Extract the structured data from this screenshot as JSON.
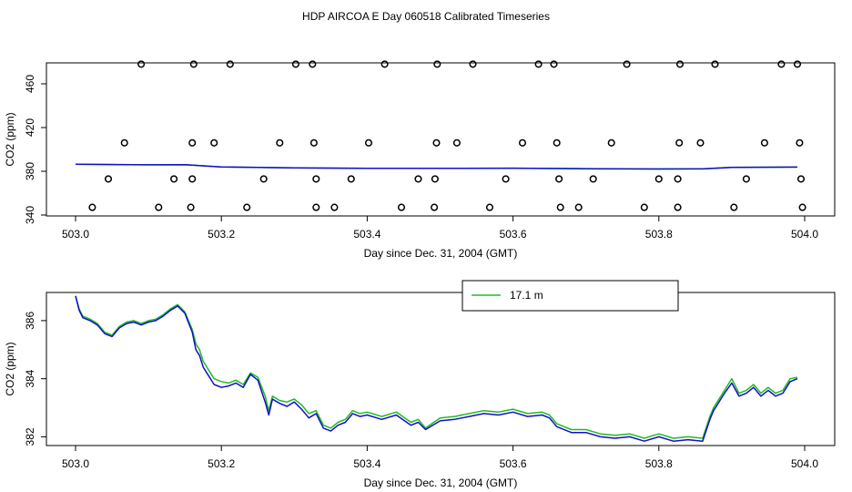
{
  "title": "HDP AIRCOA E  Day 060518  Calibrated Timeseries",
  "chart_data": [
    {
      "type": "scatter",
      "xlabel": "Day since Dec. 31, 2004 (GMT)",
      "ylabel": "CO2 (ppm)",
      "xlim": [
        503.0,
        504.0
      ],
      "ylim": [
        340,
        480
      ],
      "xticks": [
        503.0,
        503.2,
        503.4,
        503.6,
        503.8,
        504.0
      ],
      "xtick_labels": [
        "503.0",
        "503.2",
        "503.4",
        "503.6",
        "503.8",
        "504.0"
      ],
      "yticks": [
        340,
        380,
        420,
        460
      ],
      "ytick_labels": [
        "340",
        "380",
        "420",
        "460"
      ],
      "points": [
        [
          503.09,
          478
        ],
        [
          503.162,
          478
        ],
        [
          503.212,
          478
        ],
        [
          503.302,
          478
        ],
        [
          503.325,
          478
        ],
        [
          503.424,
          478
        ],
        [
          503.496,
          478
        ],
        [
          503.545,
          478
        ],
        [
          503.635,
          478
        ],
        [
          503.656,
          478
        ],
        [
          503.756,
          478
        ],
        [
          503.829,
          478
        ],
        [
          503.877,
          478
        ],
        [
          503.968,
          478
        ],
        [
          503.99,
          478
        ],
        [
          503.067,
          406
        ],
        [
          503.16,
          406
        ],
        [
          503.19,
          406
        ],
        [
          503.28,
          406
        ],
        [
          503.327,
          406
        ],
        [
          503.402,
          406
        ],
        [
          503.495,
          406
        ],
        [
          503.523,
          406
        ],
        [
          503.613,
          406
        ],
        [
          503.66,
          406
        ],
        [
          503.735,
          406
        ],
        [
          503.828,
          406
        ],
        [
          503.857,
          406
        ],
        [
          503.945,
          406
        ],
        [
          503.993,
          406
        ],
        [
          503.045,
          373
        ],
        [
          503.135,
          373
        ],
        [
          503.16,
          373
        ],
        [
          503.258,
          373
        ],
        [
          503.33,
          373
        ],
        [
          503.378,
          373
        ],
        [
          503.47,
          373
        ],
        [
          503.493,
          373
        ],
        [
          503.59,
          373
        ],
        [
          503.663,
          373
        ],
        [
          503.71,
          373
        ],
        [
          503.8,
          373
        ],
        [
          503.826,
          373
        ],
        [
          503.92,
          373
        ],
        [
          503.995,
          373
        ],
        [
          503.023,
          347
        ],
        [
          503.114,
          347
        ],
        [
          503.158,
          347
        ],
        [
          503.235,
          347
        ],
        [
          503.33,
          347
        ],
        [
          503.355,
          347
        ],
        [
          503.447,
          347
        ],
        [
          503.492,
          347
        ],
        [
          503.568,
          347
        ],
        [
          503.665,
          347
        ],
        [
          503.69,
          347
        ],
        [
          503.78,
          347
        ],
        [
          503.826,
          347
        ],
        [
          503.903,
          347
        ],
        [
          503.997,
          347
        ]
      ],
      "series": [
        {
          "color": "#22bb22",
          "values": [
            [
              503.0,
              386.4
            ],
            [
              503.1,
              385.9
            ],
            [
              503.15,
              386.0
            ],
            [
              503.2,
              384.0
            ],
            [
              503.3,
              383.2
            ],
            [
              503.4,
              382.7
            ],
            [
              503.5,
              382.7
            ],
            [
              503.6,
              382.8
            ],
            [
              503.7,
              382.4
            ],
            [
              503.8,
              382.2
            ],
            [
              503.86,
              382.3
            ],
            [
              503.9,
              383.7
            ],
            [
              503.99,
              383.8
            ]
          ]
        },
        {
          "color": "#1010cc",
          "values": [
            [
              503.0,
              386.4
            ],
            [
              503.1,
              385.9
            ],
            [
              503.15,
              386.0
            ],
            [
              503.2,
              384.0
            ],
            [
              503.3,
              383.2
            ],
            [
              503.4,
              382.7
            ],
            [
              503.5,
              382.7
            ],
            [
              503.6,
              382.8
            ],
            [
              503.7,
              382.3
            ],
            [
              503.8,
              382.1
            ],
            [
              503.86,
              382.2
            ],
            [
              503.9,
              383.6
            ],
            [
              503.99,
              383.8
            ]
          ]
        }
      ]
    },
    {
      "type": "line",
      "xlabel": "Day since Dec. 31, 2004 (GMT)",
      "ylabel": "CO2 (ppm)",
      "xlim": [
        503.0,
        504.0
      ],
      "ylim": [
        381.7,
        387.0
      ],
      "xticks": [
        503.0,
        503.2,
        503.4,
        503.6,
        503.8,
        504.0
      ],
      "xtick_labels": [
        "503.0",
        "503.2",
        "503.4",
        "503.6",
        "503.8",
        "504.0"
      ],
      "yticks": [
        382,
        384,
        386
      ],
      "ytick_labels": [
        "382",
        "384",
        "386"
      ],
      "legend": {
        "position": "top-center",
        "entries": [
          "17.1 m"
        ]
      },
      "series": [
        {
          "name": "17.1 m",
          "color": "#22bb22",
          "values": [
            [
              503.0,
              386.85
            ],
            [
              503.005,
              386.4
            ],
            [
              503.01,
              386.15
            ],
            [
              503.02,
              386.05
            ],
            [
              503.03,
              385.9
            ],
            [
              503.04,
              385.6
            ],
            [
              503.05,
              385.5
            ],
            [
              503.06,
              385.8
            ],
            [
              503.07,
              385.95
            ],
            [
              503.08,
              386.0
            ],
            [
              503.09,
              385.9
            ],
            [
              503.1,
              386.0
            ],
            [
              503.11,
              386.05
            ],
            [
              503.12,
              386.2
            ],
            [
              503.13,
              386.4
            ],
            [
              503.14,
              386.55
            ],
            [
              503.15,
              386.3
            ],
            [
              503.16,
              385.7
            ],
            [
              503.165,
              385.2
            ],
            [
              503.17,
              385.0
            ],
            [
              503.175,
              384.6
            ],
            [
              503.18,
              384.4
            ],
            [
              503.19,
              384.0
            ],
            [
              503.2,
              383.9
            ],
            [
              503.21,
              383.85
            ],
            [
              503.22,
              383.95
            ],
            [
              503.23,
              383.8
            ],
            [
              503.24,
              384.2
            ],
            [
              503.25,
              384.05
            ],
            [
              503.26,
              383.4
            ],
            [
              503.265,
              382.9
            ],
            [
              503.27,
              383.4
            ],
            [
              503.28,
              383.25
            ],
            [
              503.29,
              383.2
            ],
            [
              503.3,
              383.3
            ],
            [
              503.31,
              383.1
            ],
            [
              503.32,
              382.8
            ],
            [
              503.33,
              382.9
            ],
            [
              503.34,
              382.4
            ],
            [
              503.35,
              382.3
            ],
            [
              503.36,
              382.5
            ],
            [
              503.37,
              382.6
            ],
            [
              503.38,
              382.9
            ],
            [
              503.39,
              382.8
            ],
            [
              503.4,
              382.85
            ],
            [
              503.42,
              382.7
            ],
            [
              503.44,
              382.85
            ],
            [
              503.46,
              382.5
            ],
            [
              503.47,
              382.6
            ],
            [
              503.48,
              382.3
            ],
            [
              503.5,
              382.65
            ],
            [
              503.52,
              382.7
            ],
            [
              503.54,
              382.8
            ],
            [
              503.56,
              382.9
            ],
            [
              503.58,
              382.85
            ],
            [
              503.6,
              382.95
            ],
            [
              503.62,
              382.8
            ],
            [
              503.64,
              382.85
            ],
            [
              503.65,
              382.75
            ],
            [
              503.66,
              382.45
            ],
            [
              503.68,
              382.25
            ],
            [
              503.7,
              382.25
            ],
            [
              503.72,
              382.1
            ],
            [
              503.74,
              382.05
            ],
            [
              503.76,
              382.1
            ],
            [
              503.78,
              381.95
            ],
            [
              503.8,
              382.1
            ],
            [
              503.82,
              381.95
            ],
            [
              503.84,
              382.0
            ],
            [
              503.86,
              381.95
            ],
            [
              503.87,
              382.7
            ],
            [
              503.875,
              383.0
            ],
            [
              503.88,
              383.2
            ],
            [
              503.89,
              383.6
            ],
            [
              503.9,
              384.0
            ],
            [
              503.91,
              383.5
            ],
            [
              503.92,
              383.6
            ],
            [
              503.93,
              383.8
            ],
            [
              503.94,
              383.5
            ],
            [
              503.95,
              383.7
            ],
            [
              503.96,
              383.5
            ],
            [
              503.97,
              383.6
            ],
            [
              503.98,
              384.0
            ],
            [
              503.99,
              384.05
            ]
          ]
        },
        {
          "color": "#1010cc",
          "values": [
            [
              503.0,
              386.85
            ],
            [
              503.005,
              386.35
            ],
            [
              503.01,
              386.1
            ],
            [
              503.02,
              386.0
            ],
            [
              503.03,
              385.85
            ],
            [
              503.04,
              385.55
            ],
            [
              503.05,
              385.45
            ],
            [
              503.06,
              385.75
            ],
            [
              503.07,
              385.9
            ],
            [
              503.08,
              385.95
            ],
            [
              503.09,
              385.85
            ],
            [
              503.1,
              385.95
            ],
            [
              503.11,
              386.0
            ],
            [
              503.12,
              386.15
            ],
            [
              503.13,
              386.35
            ],
            [
              503.14,
              386.5
            ],
            [
              503.15,
              386.25
            ],
            [
              503.16,
              385.6
            ],
            [
              503.165,
              385.0
            ],
            [
              503.17,
              384.8
            ],
            [
              503.175,
              384.4
            ],
            [
              503.18,
              384.2
            ],
            [
              503.19,
              383.8
            ],
            [
              503.2,
              383.7
            ],
            [
              503.21,
              383.75
            ],
            [
              503.22,
              383.85
            ],
            [
              503.23,
              383.7
            ],
            [
              503.24,
              384.15
            ],
            [
              503.25,
              383.95
            ],
            [
              503.26,
              383.2
            ],
            [
              503.265,
              382.75
            ],
            [
              503.27,
              383.3
            ],
            [
              503.28,
              383.15
            ],
            [
              503.29,
              383.05
            ],
            [
              503.3,
              383.2
            ],
            [
              503.31,
              382.95
            ],
            [
              503.32,
              382.65
            ],
            [
              503.33,
              382.8
            ],
            [
              503.34,
              382.3
            ],
            [
              503.35,
              382.2
            ],
            [
              503.36,
              382.4
            ],
            [
              503.37,
              382.5
            ],
            [
              503.38,
              382.8
            ],
            [
              503.39,
              382.7
            ],
            [
              503.4,
              382.75
            ],
            [
              503.42,
              382.6
            ],
            [
              503.44,
              382.75
            ],
            [
              503.46,
              382.4
            ],
            [
              503.47,
              382.5
            ],
            [
              503.48,
              382.25
            ],
            [
              503.5,
              382.55
            ],
            [
              503.52,
              382.6
            ],
            [
              503.54,
              382.7
            ],
            [
              503.56,
              382.8
            ],
            [
              503.58,
              382.75
            ],
            [
              503.6,
              382.85
            ],
            [
              503.62,
              382.7
            ],
            [
              503.64,
              382.75
            ],
            [
              503.65,
              382.65
            ],
            [
              503.66,
              382.35
            ],
            [
              503.68,
              382.15
            ],
            [
              503.7,
              382.15
            ],
            [
              503.72,
              382.0
            ],
            [
              503.74,
              381.95
            ],
            [
              503.76,
              382.0
            ],
            [
              503.78,
              381.85
            ],
            [
              503.8,
              382.0
            ],
            [
              503.82,
              381.85
            ],
            [
              503.84,
              381.9
            ],
            [
              503.86,
              381.85
            ],
            [
              503.87,
              382.6
            ],
            [
              503.875,
              382.9
            ],
            [
              503.88,
              383.1
            ],
            [
              503.89,
              383.5
            ],
            [
              503.9,
              383.85
            ],
            [
              503.91,
              383.4
            ],
            [
              503.92,
              383.5
            ],
            [
              503.93,
              383.7
            ],
            [
              503.94,
              383.4
            ],
            [
              503.95,
              383.6
            ],
            [
              503.96,
              383.4
            ],
            [
              503.97,
              383.5
            ],
            [
              503.98,
              383.9
            ],
            [
              503.99,
              384.0
            ]
          ]
        }
      ]
    }
  ]
}
